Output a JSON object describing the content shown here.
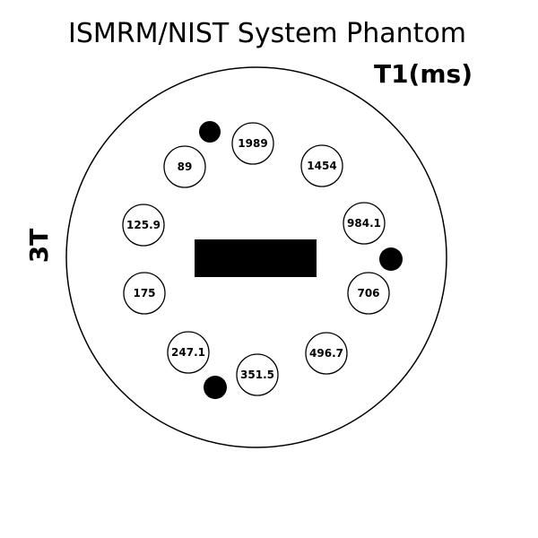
{
  "title": "ISMRM/NIST System Phantom",
  "unit_label": "T1(ms)",
  "field_strength": "3T",
  "vials": [
    {
      "value": "1989"
    },
    {
      "value": "1454"
    },
    {
      "value": "984.1"
    },
    {
      "value": "706"
    },
    {
      "value": "496.7"
    },
    {
      "value": "351.5"
    },
    {
      "value": "247.1"
    },
    {
      "value": "175"
    },
    {
      "value": "125.9"
    },
    {
      "value": "89"
    }
  ],
  "fiducial_count": 3
}
